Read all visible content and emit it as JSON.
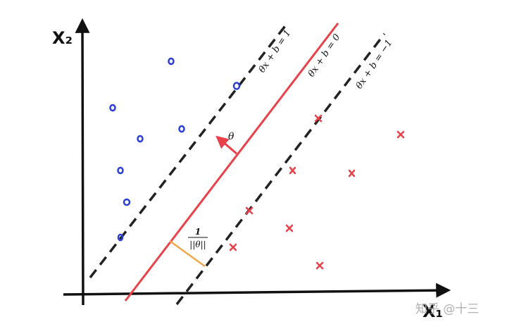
{
  "axes": {
    "x_label": "X₁",
    "y_label": "X₂"
  },
  "lines": {
    "upper_margin": "θx + b = 1",
    "decision_boundary": "θx + b = 0",
    "lower_margin": "θx + b = −1"
  },
  "normal_vector_label": "θ",
  "margin_label": {
    "numerator": "1",
    "denominator": "||θ||"
  },
  "classes": {
    "positive_marker": "circle",
    "negative_marker": "cross"
  },
  "colors": {
    "axis": "#111111",
    "boundary": "#e8414a",
    "margin_lines": "#222222",
    "circles": "#2b3fd6",
    "crosses": "#e8414a",
    "margin_segment": "#f0a64a",
    "watermark": "#b0b0b0"
  },
  "watermark": "知乎 @十三"
}
